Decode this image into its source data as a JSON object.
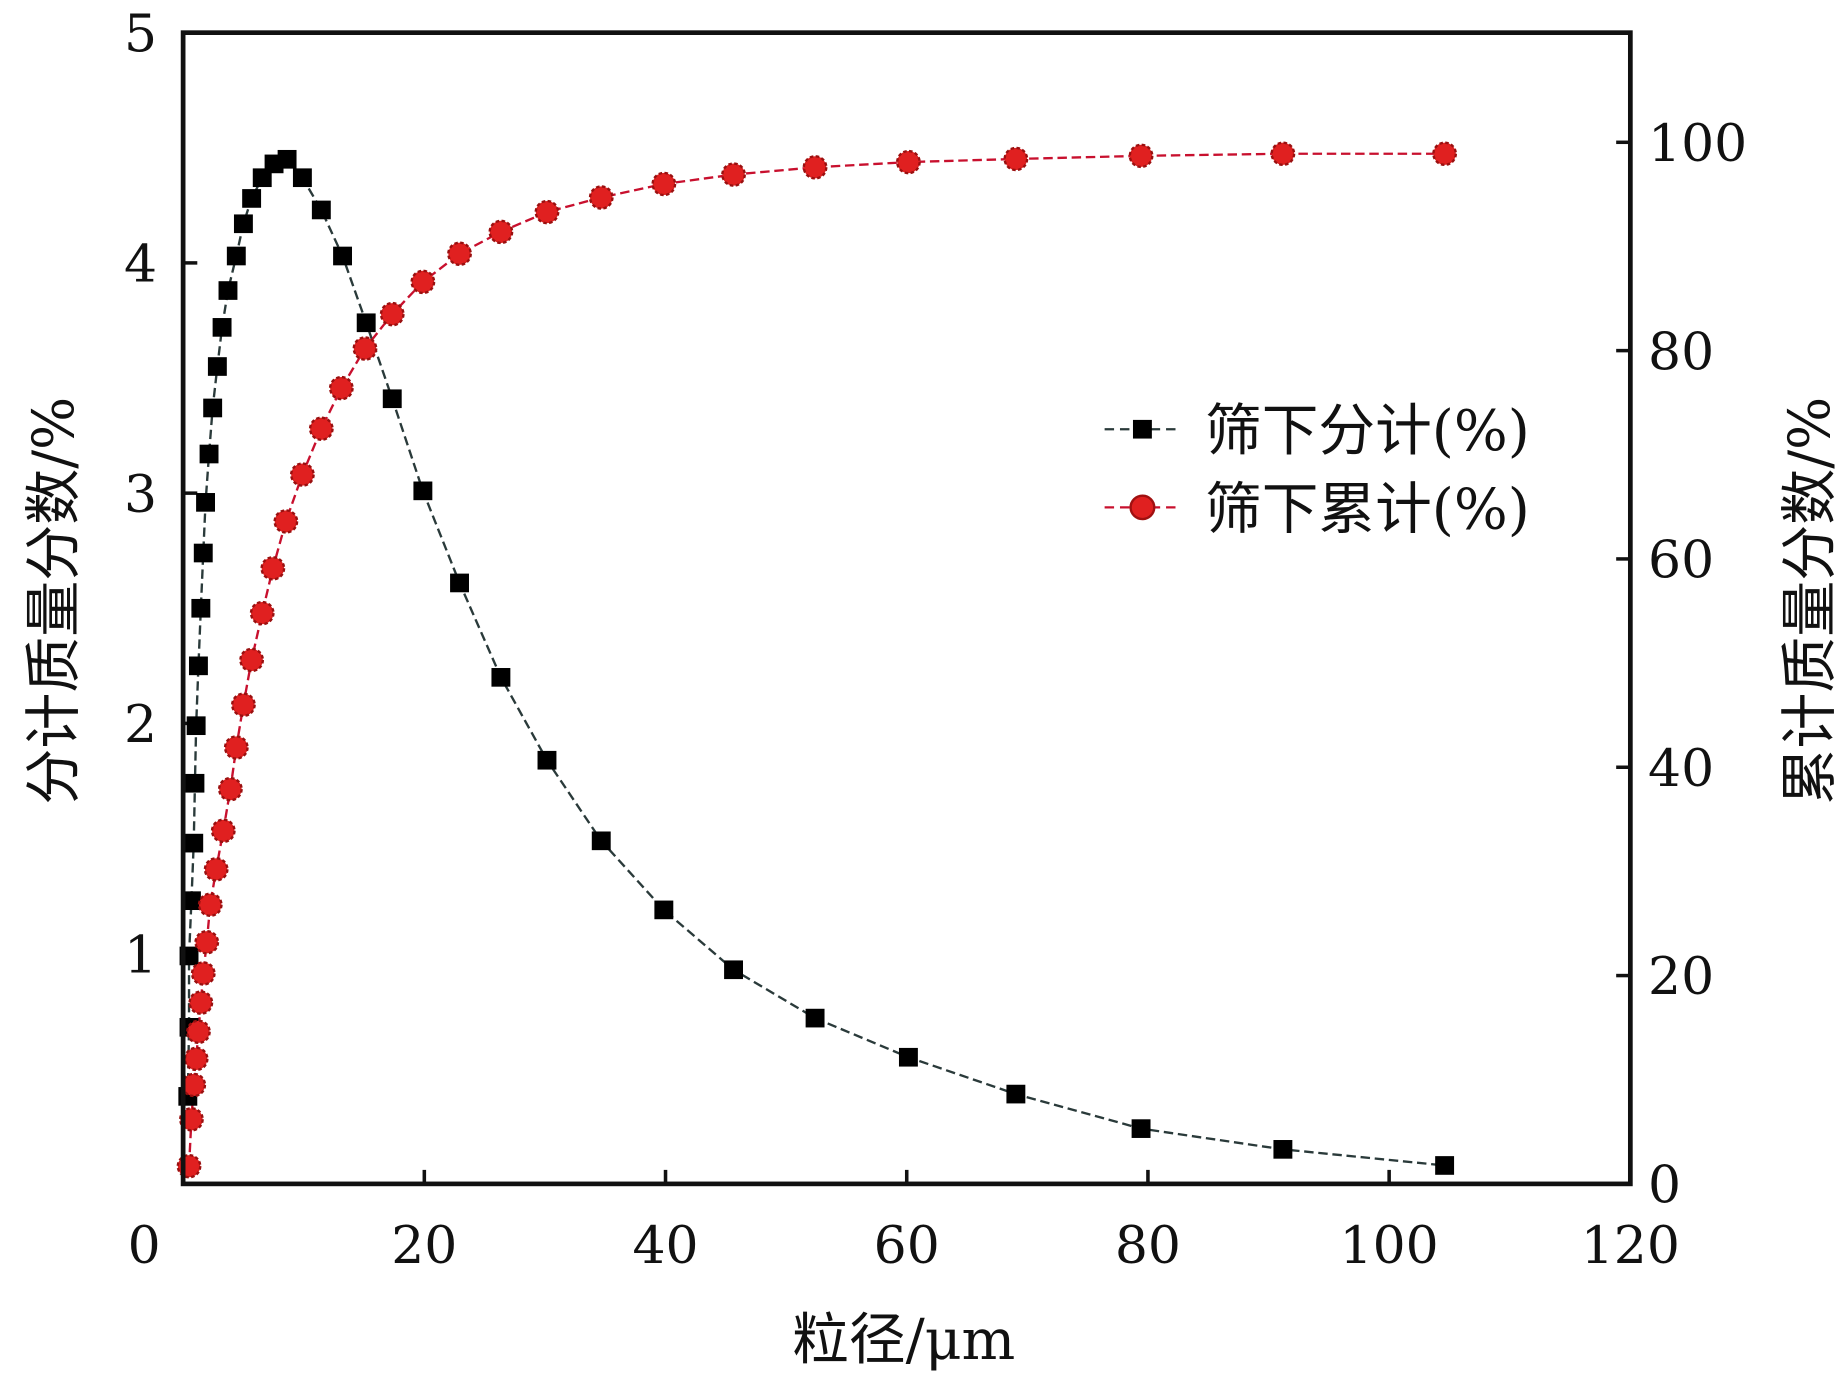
{
  "chart_data": {
    "type": "line",
    "title": "",
    "xlabel": "粒径/μm",
    "ylabel_left": "分计质量分数/%",
    "ylabel_right": "累计质量分数/%",
    "xlim": [
      0,
      120
    ],
    "ylim_left": [
      0,
      5
    ],
    "ylim_right": [
      0,
      110
    ],
    "x_ticks": [
      "0",
      "20",
      "40",
      "60",
      "80",
      "100",
      "120"
    ],
    "y_left_ticks": [
      "1",
      "2",
      "3",
      "4",
      "5"
    ],
    "y_right_ticks": [
      "0",
      "20",
      "40",
      "60",
      "80",
      "100"
    ],
    "grid": false,
    "legend_position": "center-right",
    "series": [
      {
        "name": "筛下分计(%)",
        "axis": "left",
        "marker": "square",
        "color": "#000000",
        "line_color": "#2a3a3a",
        "x": [
          0.39,
          0.49,
          0.49,
          0.69,
          0.88,
          0.98,
          1.08,
          1.27,
          1.47,
          1.67,
          1.86,
          2.15,
          2.45,
          2.84,
          3.23,
          3.72,
          4.41,
          5.0,
          5.68,
          6.56,
          7.54,
          8.62,
          9.89,
          11.46,
          13.22,
          15.18,
          17.34,
          19.88,
          22.92,
          26.35,
          30.17,
          34.67,
          39.86,
          45.64,
          52.4,
          60.14,
          69.05,
          79.43,
          91.19,
          104.6
        ],
        "y": [
          0.38,
          0.68,
          0.99,
          1.23,
          1.48,
          1.74,
          1.99,
          2.25,
          2.5,
          2.74,
          2.96,
          3.17,
          3.37,
          3.55,
          3.72,
          3.88,
          4.03,
          4.17,
          4.28,
          4.37,
          4.43,
          4.45,
          4.37,
          4.23,
          4.03,
          3.74,
          3.41,
          3.01,
          2.61,
          2.2,
          1.84,
          1.49,
          1.19,
          0.93,
          0.72,
          0.55,
          0.39,
          0.24,
          0.15,
          0.08
        ]
      },
      {
        "name": "筛下累计(%)",
        "axis": "right",
        "marker": "circle",
        "color": "#e02020",
        "line_color": "#c8102e",
        "x": [
          0.49,
          0.69,
          0.88,
          1.08,
          1.27,
          1.47,
          1.67,
          1.96,
          2.25,
          2.74,
          3.33,
          3.92,
          4.41,
          5.0,
          5.68,
          6.56,
          7.44,
          8.52,
          9.89,
          11.46,
          13.12,
          15.08,
          17.34,
          19.88,
          22.92,
          26.35,
          30.17,
          34.67,
          39.86,
          45.64,
          52.4,
          60.14,
          69.05,
          79.43,
          91.19,
          104.6
        ],
        "y": [
          1.7,
          6.2,
          9.5,
          12.0,
          14.6,
          17.4,
          20.2,
          23.2,
          26.8,
          30.2,
          33.9,
          37.9,
          41.9,
          46.0,
          50.3,
          54.8,
          59.1,
          63.6,
          68.1,
          72.5,
          76.4,
          80.2,
          83.5,
          86.6,
          89.3,
          91.4,
          93.3,
          94.7,
          96.0,
          96.9,
          97.6,
          98.1,
          98.4,
          98.7,
          98.9,
          98.9
        ]
      }
    ]
  }
}
